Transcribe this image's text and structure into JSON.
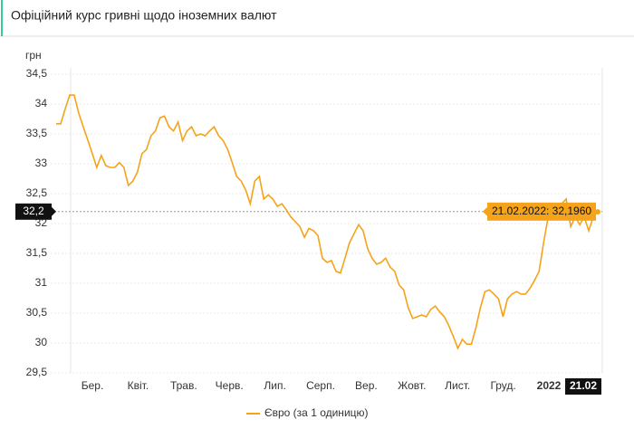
{
  "chart_data": {
    "type": "line",
    "title": "Офіційний курс гривні щодо іноземних валют",
    "y_label": "грн",
    "ylim": [
      29.5,
      34.5
    ],
    "yticks": [
      {
        "value": 34.5,
        "label": "34,5"
      },
      34,
      {
        "value": 33.5,
        "label": "33,5"
      },
      33,
      {
        "value": 32.5,
        "label": "32,5"
      },
      32,
      {
        "value": 31.5,
        "label": "31,5"
      },
      31,
      {
        "value": 30.5,
        "label": "30,5"
      },
      30,
      {
        "value": 29.5,
        "label": "29,5"
      }
    ],
    "grid": true,
    "month_labels": [
      "Бер.",
      "Квіт.",
      "Трав.",
      "Черв.",
      "Лип.",
      "Серп.",
      "Вер.",
      "Жовт.",
      "Лист.",
      "Груд.",
      "2022"
    ],
    "series": [
      {
        "name": "Євро (за 1 одиницю)",
        "color": "#f5a31a",
        "values": [
          33.67,
          33.67,
          33.92,
          34.15,
          34.15,
          33.85,
          33.62,
          33.4,
          33.17,
          32.94,
          33.14,
          32.97,
          32.94,
          32.94,
          33.02,
          32.94,
          32.64,
          32.71,
          32.86,
          33.17,
          33.24,
          33.47,
          33.55,
          33.77,
          33.8,
          33.62,
          33.55,
          33.7,
          33.39,
          33.55,
          33.62,
          33.47,
          33.5,
          33.47,
          33.55,
          33.62,
          33.47,
          33.39,
          33.24,
          33.02,
          32.79,
          32.71,
          32.56,
          32.33,
          32.71,
          32.79,
          32.41,
          32.48,
          32.41,
          32.29,
          32.33,
          32.23,
          32.11,
          32.03,
          31.95,
          31.77,
          31.92,
          31.88,
          31.8,
          31.42,
          31.35,
          31.38,
          31.2,
          31.17,
          31.42,
          31.68,
          31.83,
          31.98,
          31.88,
          31.58,
          31.42,
          31.32,
          31.35,
          31.42,
          31.27,
          31.2,
          30.97,
          30.89,
          30.59,
          30.41,
          30.44,
          30.47,
          30.44,
          30.56,
          30.62,
          30.52,
          30.44,
          30.29,
          30.11,
          29.91,
          30.06,
          29.98,
          29.98,
          30.26,
          30.59,
          30.86,
          30.89,
          30.82,
          30.74,
          30.44,
          30.74,
          30.82,
          30.86,
          30.82,
          30.82,
          30.92,
          31.05,
          31.2,
          31.68,
          32.11,
          32.18,
          32.26,
          32.33,
          32.41,
          31.95,
          32.11,
          31.98,
          32.11,
          31.88,
          32.11,
          32.196
        ]
      }
    ],
    "highlight": {
      "value": 32.196,
      "label": "21.02.2022: 32,1960",
      "date": "21.02",
      "y_marker": {
        "value": 32.2,
        "label": "32,2"
      }
    }
  }
}
